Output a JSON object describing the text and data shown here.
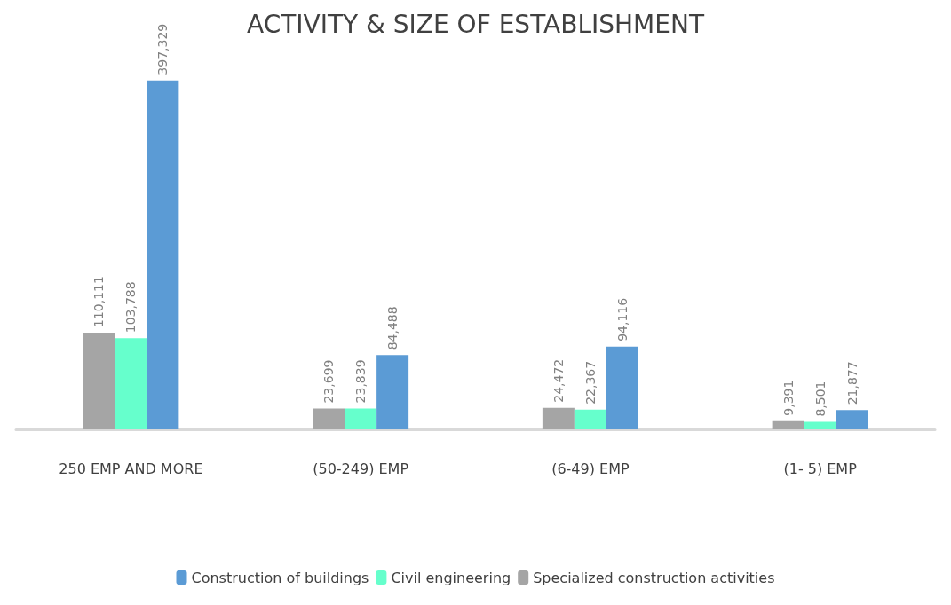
{
  "chart_data": {
    "type": "bar",
    "title": "ACTIVITY & SIZE OF ESTABLISHMENT",
    "categories": [
      "250 EMP AND MORE",
      "(50-249) EMP",
      "(6-49) EMP",
      "(1- 5) EMP"
    ],
    "series": [
      {
        "name": "Specialized construction activities",
        "color": "#a5a5a5",
        "values": [
          110111,
          23699,
          24472,
          9391
        ],
        "value_labels": [
          "110,111",
          "23,699",
          "24,472",
          "9,391"
        ]
      },
      {
        "name": "Civil engineering",
        "color": "#66ffcc",
        "values": [
          103788,
          23839,
          22367,
          8501
        ],
        "value_labels": [
          "103,788",
          "23,839",
          "22,367",
          "8,501"
        ]
      },
      {
        "name": "Construction of buildings",
        "color": "#5b9bd5",
        "values": [
          397329,
          84488,
          94116,
          21877
        ],
        "value_labels": [
          "397,329",
          "84,488",
          "94,116",
          "21,877"
        ]
      }
    ],
    "legend": "bottom",
    "grid": false
  }
}
